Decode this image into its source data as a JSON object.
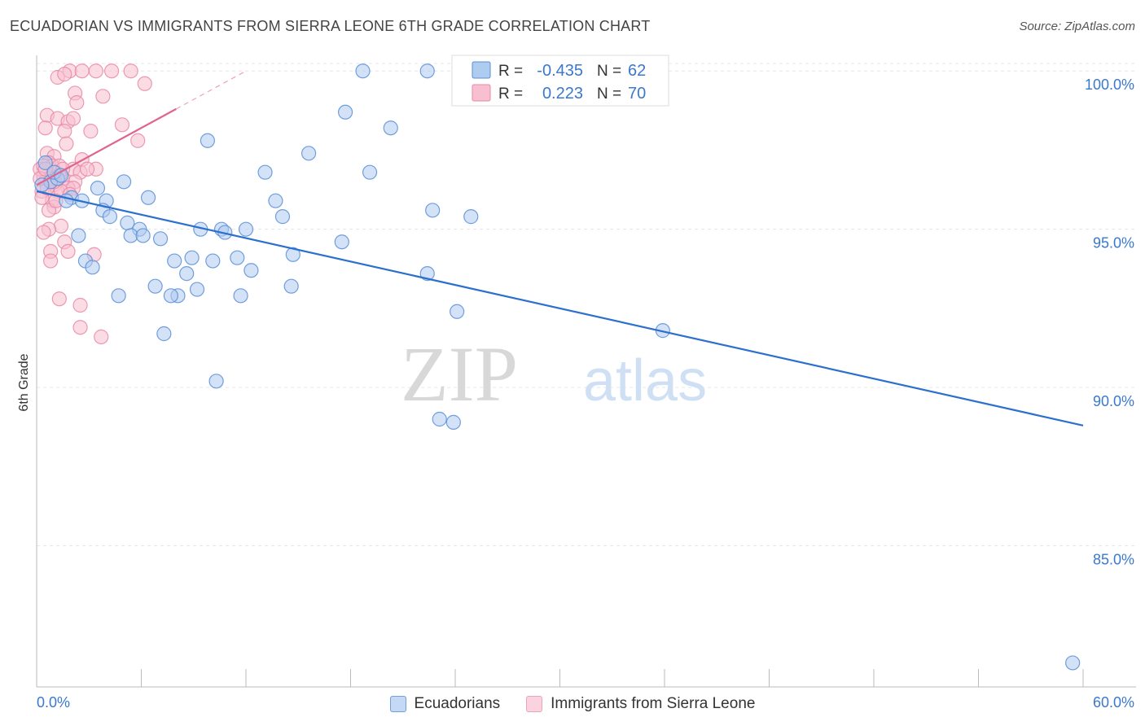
{
  "header": {
    "title": "ECUADORIAN VS IMMIGRANTS FROM SIERRA LEONE 6TH GRADE CORRELATION CHART",
    "source": "Source: ZipAtlas.com"
  },
  "watermark": {
    "part1": "ZIP",
    "part2": "atlas"
  },
  "colors": {
    "blue_fill": "#aecbf0",
    "blue_stroke": "#5a8fd6",
    "blue_line": "#2b6fcf",
    "pink_fill": "#f7bfd0",
    "pink_stroke": "#e88aa7",
    "pink_line": "#e0648f",
    "axis_text": "#3a78d0",
    "grid": "#e6e6e6"
  },
  "stats_legend": {
    "r_label": "R =",
    "n_label": "N =",
    "rows": [
      {
        "series": "Ecuadorians",
        "r": "-0.435",
        "n": "62"
      },
      {
        "series": "Immigrants from Sierra Leone",
        "r": "0.223",
        "n": "70"
      }
    ]
  },
  "chart_data": {
    "type": "scatter",
    "title": "ECUADORIAN VS IMMIGRANTS FROM SIERRA LEONE 6TH GRADE CORRELATION CHART",
    "xlabel": "",
    "ylabel": "6th Grade",
    "xlim": [
      0,
      60
    ],
    "ylim": [
      80.9,
      100.7
    ],
    "x_tick_labels": [
      "0.0%",
      "60.0%"
    ],
    "y_ticks": [
      85,
      90,
      95,
      100
    ],
    "y_tick_labels": [
      "85.0%",
      "90.0%",
      "95.0%",
      "100.0%"
    ],
    "grid": true,
    "legend_position": "bottom",
    "series": [
      {
        "name": "Ecuadorians",
        "color": "#aecbf0",
        "trend": {
          "x0": 0,
          "y0": 96.2,
          "x1": 60,
          "y1": 88.8
        },
        "points": [
          [
            18.7,
            100.0
          ],
          [
            22.4,
            100.0
          ],
          [
            17.7,
            98.7
          ],
          [
            20.3,
            98.2
          ],
          [
            9.8,
            97.8
          ],
          [
            15.6,
            97.4
          ],
          [
            19.1,
            96.8
          ],
          [
            13.1,
            96.8
          ],
          [
            5.0,
            96.5
          ],
          [
            3.5,
            96.3
          ],
          [
            0.8,
            96.5
          ],
          [
            1.2,
            96.6
          ],
          [
            2.0,
            96.0
          ],
          [
            1.7,
            95.9
          ],
          [
            2.6,
            95.9
          ],
          [
            6.4,
            96.0
          ],
          [
            4.0,
            95.9
          ],
          [
            3.8,
            95.6
          ],
          [
            13.7,
            95.9
          ],
          [
            22.7,
            95.6
          ],
          [
            4.2,
            95.4
          ],
          [
            5.2,
            95.2
          ],
          [
            14.1,
            95.4
          ],
          [
            24.9,
            95.4
          ],
          [
            9.4,
            95.0
          ],
          [
            10.6,
            95.0
          ],
          [
            12.0,
            95.0
          ],
          [
            5.9,
            95.0
          ],
          [
            10.8,
            94.9
          ],
          [
            5.4,
            94.8
          ],
          [
            6.1,
            94.8
          ],
          [
            2.4,
            94.8
          ],
          [
            7.1,
            94.7
          ],
          [
            17.5,
            94.6
          ],
          [
            14.7,
            94.2
          ],
          [
            8.9,
            94.1
          ],
          [
            11.5,
            94.1
          ],
          [
            2.8,
            94.0
          ],
          [
            7.9,
            94.0
          ],
          [
            10.1,
            94.0
          ],
          [
            3.2,
            93.8
          ],
          [
            12.3,
            93.7
          ],
          [
            8.6,
            93.6
          ],
          [
            22.4,
            93.6
          ],
          [
            6.8,
            93.2
          ],
          [
            14.6,
            93.2
          ],
          [
            9.2,
            93.1
          ],
          [
            4.7,
            92.9
          ],
          [
            8.1,
            92.9
          ],
          [
            11.7,
            92.9
          ],
          [
            7.7,
            92.9
          ],
          [
            24.1,
            92.4
          ],
          [
            35.9,
            91.8
          ],
          [
            7.3,
            91.7
          ],
          [
            10.3,
            90.2
          ],
          [
            23.1,
            89.0
          ],
          [
            23.9,
            88.9
          ],
          [
            59.4,
            81.3
          ],
          [
            0.5,
            97.1
          ],
          [
            1.0,
            96.8
          ],
          [
            1.4,
            96.7
          ],
          [
            0.3,
            96.4
          ]
        ]
      },
      {
        "name": "Immigrants from Sierra Leone",
        "color": "#f7bfd0",
        "trend": {
          "x0": 0,
          "y0": 96.4,
          "x1": 12,
          "y1": 100.0,
          "solid_until_x": 8.0
        },
        "points": [
          [
            1.9,
            100.0
          ],
          [
            2.6,
            100.0
          ],
          [
            3.4,
            100.0
          ],
          [
            4.3,
            100.0
          ],
          [
            5.4,
            100.0
          ],
          [
            1.2,
            99.8
          ],
          [
            1.6,
            99.9
          ],
          [
            6.2,
            99.6
          ],
          [
            2.2,
            99.3
          ],
          [
            3.8,
            99.2
          ],
          [
            2.3,
            99.0
          ],
          [
            0.6,
            98.6
          ],
          [
            1.2,
            98.5
          ],
          [
            1.8,
            98.4
          ],
          [
            2.1,
            98.5
          ],
          [
            4.9,
            98.3
          ],
          [
            0.5,
            98.2
          ],
          [
            1.6,
            98.1
          ],
          [
            3.1,
            98.1
          ],
          [
            5.8,
            97.8
          ],
          [
            1.7,
            97.7
          ],
          [
            0.6,
            97.4
          ],
          [
            1.0,
            97.3
          ],
          [
            2.6,
            97.2
          ],
          [
            0.7,
            97.1
          ],
          [
            0.9,
            97.0
          ],
          [
            1.3,
            97.0
          ],
          [
            2.1,
            96.9
          ],
          [
            3.4,
            96.9
          ],
          [
            1.1,
            96.8
          ],
          [
            2.5,
            96.8
          ],
          [
            0.4,
            96.7
          ],
          [
            0.9,
            96.6
          ],
          [
            1.5,
            96.6
          ],
          [
            2.2,
            96.5
          ],
          [
            0.5,
            96.5
          ],
          [
            1.0,
            96.4
          ],
          [
            1.8,
            96.3
          ],
          [
            2.1,
            96.3
          ],
          [
            0.3,
            96.2
          ],
          [
            1.2,
            96.2
          ],
          [
            1.4,
            96.2
          ],
          [
            1.9,
            96.1
          ],
          [
            0.9,
            95.9
          ],
          [
            1.0,
            95.7
          ],
          [
            0.7,
            95.6
          ],
          [
            1.4,
            95.1
          ],
          [
            0.7,
            95.0
          ],
          [
            0.4,
            94.9
          ],
          [
            1.6,
            94.6
          ],
          [
            0.8,
            94.3
          ],
          [
            1.8,
            94.3
          ],
          [
            3.3,
            94.2
          ],
          [
            0.8,
            94.0
          ],
          [
            1.3,
            92.8
          ],
          [
            2.5,
            92.6
          ],
          [
            2.5,
            91.9
          ],
          [
            3.7,
            91.6
          ],
          [
            0.2,
            96.9
          ],
          [
            0.3,
            96.0
          ],
          [
            1.1,
            95.9
          ],
          [
            0.6,
            96.3
          ],
          [
            2.9,
            96.9
          ],
          [
            0.4,
            97.0
          ],
          [
            1.5,
            96.9
          ],
          [
            0.8,
            96.6
          ],
          [
            1.3,
            96.7
          ],
          [
            0.2,
            96.6
          ],
          [
            0.5,
            96.9
          ],
          [
            1.0,
            96.5
          ]
        ]
      }
    ]
  }
}
